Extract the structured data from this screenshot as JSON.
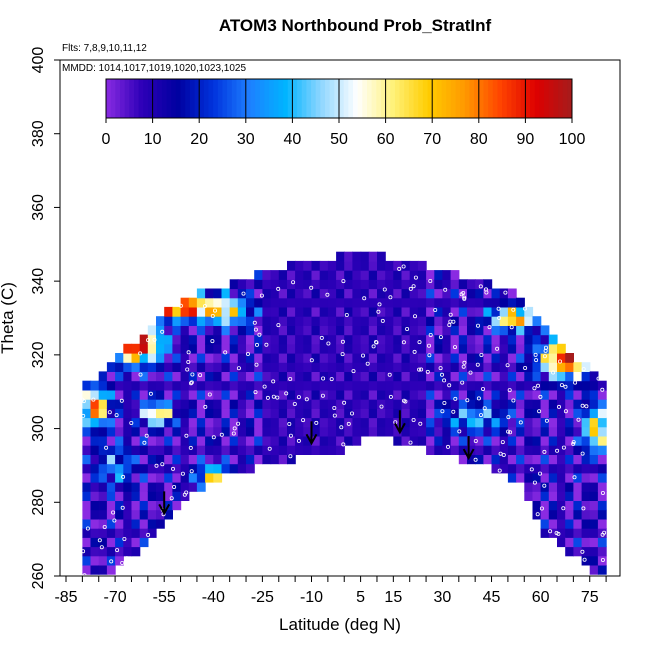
{
  "chart_data": {
    "type": "heatmap",
    "title": "ATOM3 Northbound Prob_StratInf",
    "annotations": {
      "flights": "Flts: 7,8,9,10,11,12",
      "dates": "MMDD: 1014,1017,1019,1020,1023,1025"
    },
    "xlabel": "Latitude (deg N)",
    "ylabel": "Theta (C)",
    "xlim": [
      -85,
      85
    ],
    "ylim": [
      260,
      400
    ],
    "x_ticks": [
      -85,
      -70,
      -55,
      -40,
      -25,
      -10,
      5,
      15,
      30,
      45,
      60,
      75
    ],
    "y_ticks": [
      260,
      280,
      300,
      320,
      340,
      360,
      380,
      400
    ],
    "colorbar": {
      "min": 0,
      "max": 100,
      "ticks": [
        0,
        10,
        20,
        30,
        40,
        50,
        60,
        70,
        80,
        90,
        100
      ],
      "colors": [
        "#8a2be2",
        "#2e00b8",
        "#0000a0",
        "#0033dd",
        "#1e7fff",
        "#00b4ff",
        "#8fd6ff",
        "#ffffff",
        "#fff27a",
        "#ffcc00",
        "#ff9900",
        "#ff4400",
        "#dd0000",
        "#a51c1c"
      ]
    },
    "grid": false,
    "tropopause_arrows_lat": [
      -55,
      -10,
      17,
      38
    ],
    "tropopause_arrows_theta": [
      277,
      296,
      299,
      292
    ]
  }
}
